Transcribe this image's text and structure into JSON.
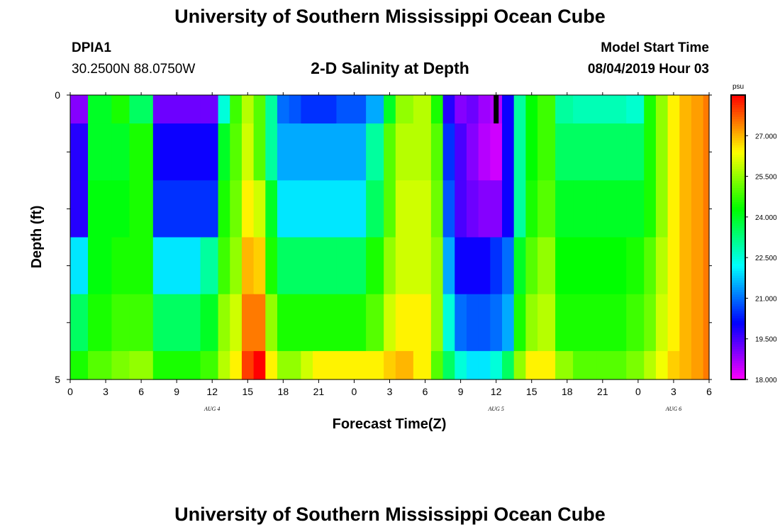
{
  "header": {
    "title_top": "University of Southern Mississippi Ocean Cube",
    "station_id": "DPIA1",
    "station_location": "30.2500N 88.0750W",
    "plot_title": "2-D Salinity at Depth",
    "model_start_label": "Model Start Time",
    "model_start_value": "08/04/2019 Hour 03",
    "title_bottom": "University of Southern Mississippi Ocean Cube"
  },
  "chart_data": {
    "type": "heatmap",
    "title": "2-D Salinity at Depth",
    "xlabel": "Forecast Time(Z)",
    "ylabel": "Depth (ft)",
    "units": "psu",
    "xlim": [
      0,
      54
    ],
    "ylim": [
      0,
      5
    ],
    "x_tick_labels": [
      "0",
      "3",
      "6",
      "9",
      "12",
      "15",
      "18",
      "21",
      "0",
      "3",
      "6",
      "9",
      "12",
      "15",
      "18",
      "21",
      "0",
      "3",
      "6"
    ],
    "y_tick_labels": [
      "0",
      "5"
    ],
    "date_labels": [
      {
        "text": "AUG 4",
        "hour": 12
      },
      {
        "text": "AUG 5",
        "hour": 36
      },
      {
        "text": "AUG 6",
        "hour": 51
      }
    ],
    "colorbar": {
      "min": 18.0,
      "max": 28.5,
      "tick_labels": [
        "18.000",
        "19.500",
        "21.000",
        "22.500",
        "24.000",
        "25.500",
        "27.000"
      ],
      "tick_values": [
        18.0,
        19.5,
        21.0,
        22.5,
        24.0,
        25.5,
        27.0
      ]
    },
    "marker_hour": 36,
    "x_hours": [
      0,
      3,
      4,
      6,
      8,
      10,
      12,
      13,
      14,
      15,
      16,
      17,
      18,
      19,
      20,
      21,
      24,
      26,
      27,
      28,
      30,
      31,
      32,
      33,
      34,
      35,
      36,
      37,
      38,
      39,
      40,
      42,
      43,
      46,
      48,
      49,
      50,
      51,
      52,
      53,
      54
    ],
    "depths": [
      0,
      1,
      2,
      3,
      4,
      5
    ],
    "values": [
      [
        19.0,
        24.0,
        24.5,
        23.5,
        19.2,
        19.2,
        19.2,
        22.5,
        24.8,
        25.8,
        25.0,
        23.0,
        21.0,
        20.8,
        20.5,
        20.5,
        20.8,
        21.5,
        24.0,
        25.5,
        25.8,
        24.5,
        19.8,
        19.0,
        19.2,
        18.8,
        18.6,
        20.0,
        23.0,
        24.3,
        24.8,
        23.0,
        22.8,
        22.8,
        22.6,
        24.5,
        25.5,
        26.5,
        27.0,
        27.2,
        27.5
      ],
      [
        19.8,
        24.0,
        24.0,
        24.5,
        20.0,
        20.0,
        20.0,
        24.0,
        25.0,
        26.0,
        25.0,
        23.0,
        21.5,
        21.5,
        21.5,
        21.5,
        21.5,
        23.0,
        25.0,
        25.8,
        25.8,
        25.0,
        20.5,
        19.5,
        19.0,
        18.6,
        18.4,
        20.0,
        23.0,
        24.3,
        24.8,
        23.5,
        23.5,
        23.5,
        23.5,
        24.5,
        25.5,
        26.5,
        27.0,
        27.2,
        27.5
      ],
      [
        19.8,
        24.2,
        24.2,
        24.5,
        20.5,
        20.5,
        20.5,
        24.5,
        25.2,
        26.5,
        26.0,
        24.0,
        22.0,
        22.0,
        22.0,
        22.0,
        22.0,
        23.5,
        25.0,
        26.0,
        26.0,
        25.2,
        20.8,
        19.5,
        19.2,
        19.0,
        19.0,
        20.0,
        23.0,
        24.5,
        25.0,
        24.0,
        24.0,
        24.0,
        24.0,
        24.5,
        25.5,
        26.5,
        27.0,
        27.2,
        27.5
      ],
      [
        22.0,
        24.2,
        24.5,
        24.5,
        22.0,
        22.0,
        23.0,
        24.8,
        25.5,
        27.0,
        26.8,
        24.5,
        23.5,
        23.5,
        23.5,
        23.5,
        23.5,
        24.5,
        25.5,
        26.0,
        26.0,
        25.5,
        21.5,
        20.0,
        20.0,
        20.0,
        20.5,
        21.0,
        24.0,
        25.0,
        25.5,
        24.3,
        24.3,
        24.3,
        24.5,
        25.0,
        25.8,
        26.5,
        27.0,
        27.2,
        27.5
      ],
      [
        23.5,
        24.5,
        24.8,
        24.8,
        23.5,
        23.5,
        24.0,
        25.5,
        26.0,
        27.5,
        27.5,
        25.5,
        24.5,
        24.5,
        24.5,
        24.5,
        24.5,
        25.0,
        26.0,
        26.5,
        26.5,
        25.5,
        22.5,
        21.0,
        20.8,
        20.8,
        21.0,
        21.5,
        24.5,
        25.5,
        25.8,
        24.5,
        24.5,
        24.5,
        24.8,
        25.2,
        26.0,
        26.5,
        27.0,
        27.2,
        27.5
      ],
      [
        24.5,
        25.0,
        25.3,
        25.5,
        24.5,
        24.5,
        24.8,
        25.8,
        26.5,
        28.0,
        28.5,
        26.5,
        25.5,
        25.5,
        26.0,
        26.5,
        26.5,
        26.5,
        26.8,
        27.0,
        26.5,
        25.0,
        23.5,
        22.5,
        22.0,
        22.0,
        22.5,
        23.5,
        25.5,
        26.5,
        26.5,
        25.5,
        25.0,
        25.0,
        25.3,
        25.8,
        26.3,
        26.8,
        27.0,
        27.2,
        27.5
      ]
    ]
  }
}
